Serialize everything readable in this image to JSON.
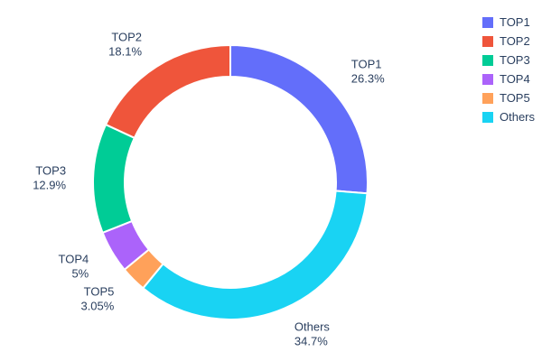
{
  "figure": {
    "background": "#ffffff",
    "text_color": "#2a3f5f"
  },
  "chart_data": {
    "type": "pie",
    "hole": 0.77,
    "title": "",
    "labels": [
      "TOP1",
      "TOP2",
      "TOP3",
      "TOP4",
      "TOP5",
      "Others"
    ],
    "values": [
      26.3,
      18.1,
      12.9,
      5,
      3.05,
      34.7
    ],
    "pct_labels": [
      "26.3%",
      "18.1%",
      "12.9%",
      "5%",
      "3.05%",
      "34.7%"
    ],
    "colors": [
      "#636efa",
      "#ef553b",
      "#00cc96",
      "#ab63fa",
      "#ffa15a",
      "#19d3f3"
    ],
    "slice_order_clockwise_from_top": [
      "TOP1",
      "Others",
      "TOP5",
      "TOP4",
      "TOP3",
      "TOP2"
    ],
    "legend": {
      "position": "top-right",
      "entries": [
        "TOP1",
        "TOP2",
        "TOP3",
        "TOP4",
        "TOP5",
        "Others"
      ]
    }
  }
}
